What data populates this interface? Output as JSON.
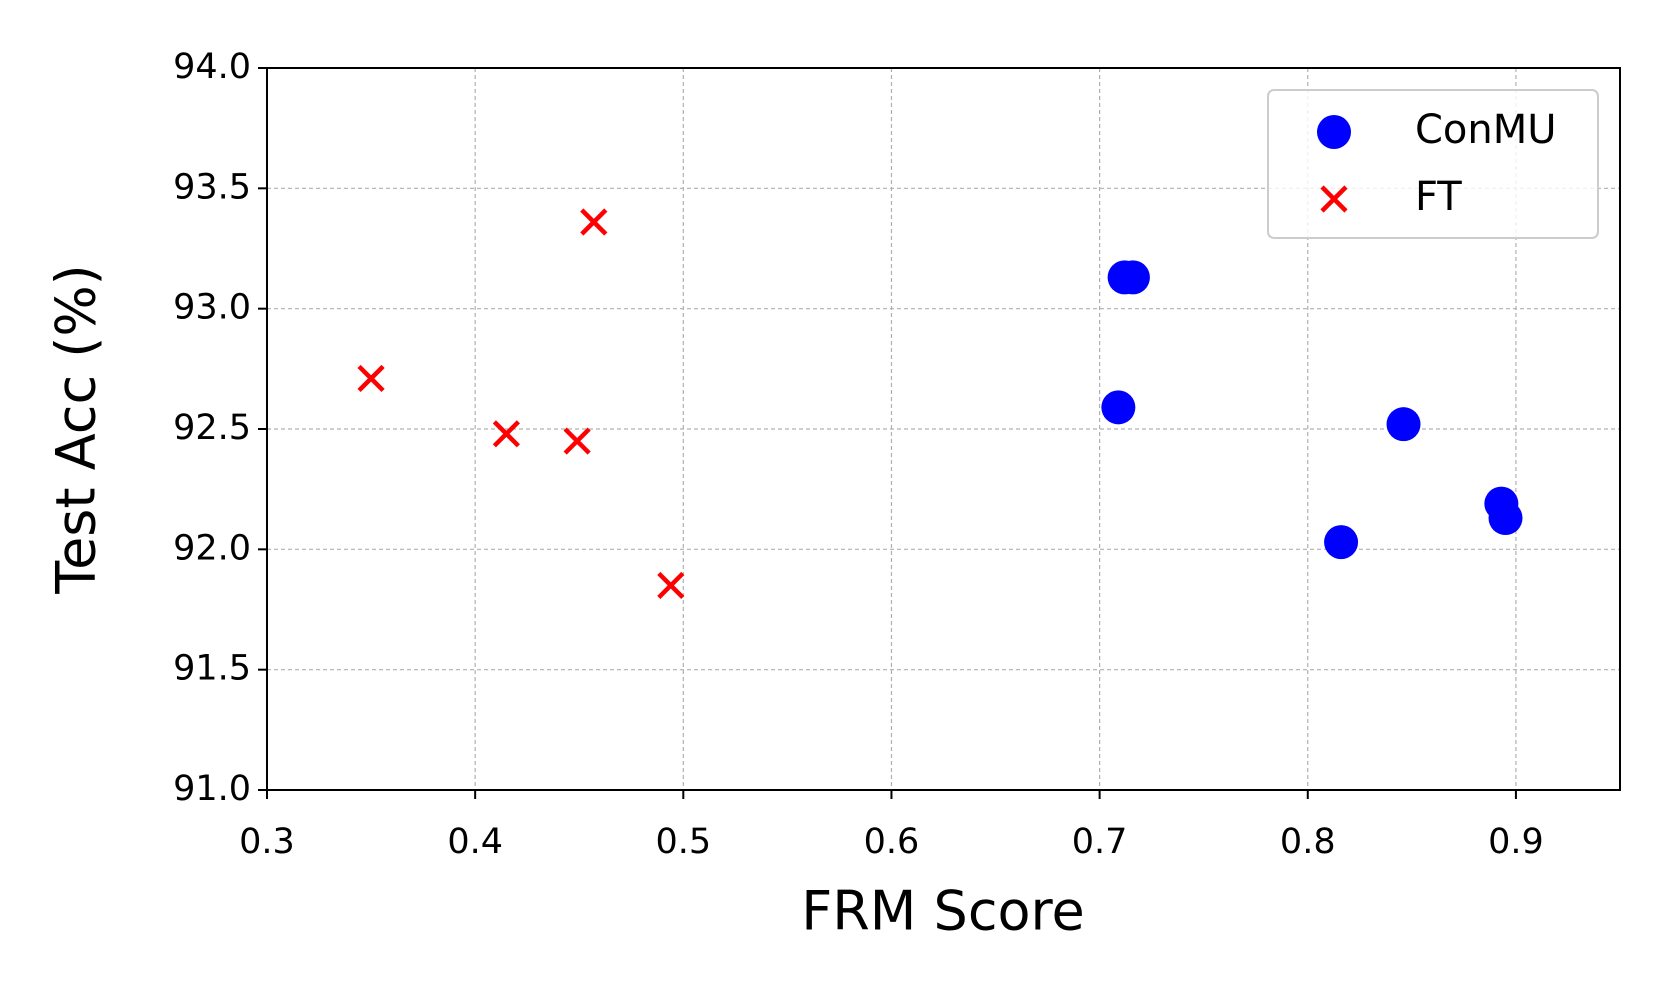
{
  "chart_data": {
    "type": "scatter",
    "xlabel": "FRM Score",
    "ylabel": "Test Acc (%)",
    "xlim": [
      0.3,
      0.95
    ],
    "ylim": [
      91.0,
      94.0
    ],
    "xticks": [
      0.3,
      0.4,
      0.5,
      0.6,
      0.7,
      0.8,
      0.9
    ],
    "yticks": [
      {
        "value": 91.0,
        "label": "91.0"
      },
      91.5,
      {
        "value": 92.0,
        "label": "92.0"
      },
      92.5,
      {
        "value": 93.0,
        "label": "93.0"
      },
      93.5,
      {
        "value": 94.0,
        "label": "94.0"
      }
    ],
    "grid": true,
    "legend": "upper right",
    "series": [
      {
        "name": "ConMU",
        "color": "#0000ff",
        "marker": "o",
        "x": [
          0.712,
          0.716,
          0.709,
          0.846,
          0.816,
          0.893,
          0.895
        ],
        "values": [
          93.13,
          93.13,
          92.59,
          92.52,
          92.03,
          92.19,
          92.13
        ]
      },
      {
        "name": "FT",
        "color": "#ff0000",
        "marker": "x",
        "x": [
          0.35,
          0.457,
          0.415,
          0.449,
          0.494
        ],
        "values": [
          92.71,
          93.36,
          92.48,
          92.45,
          91.85
        ]
      }
    ]
  }
}
